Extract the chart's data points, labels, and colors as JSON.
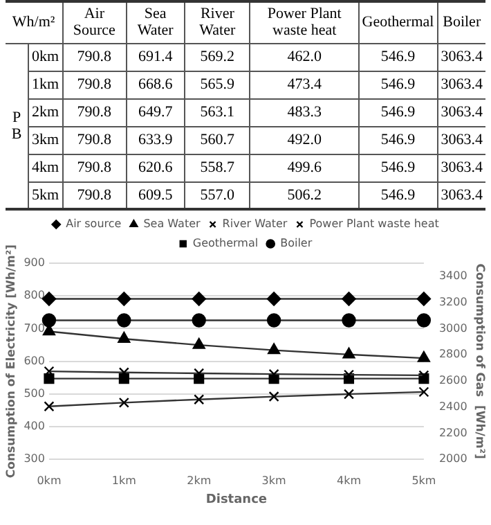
{
  "chart_data": [
    {
      "type": "heatmap",
      "categories": [
        "Air Source",
        "Sea Water",
        "River Water",
        "Power Plant waste heat",
        "Geothermal",
        "Boiler"
      ],
      "y_categories": [
        "0km",
        "1km",
        "2km",
        "3km",
        "4km",
        "5km"
      ],
      "cells": [
        [
          790.8,
          691.4,
          569.2,
          462.0,
          546.9,
          3063.4
        ],
        [
          790.8,
          668.6,
          565.9,
          473.4,
          546.9,
          3063.4
        ],
        [
          790.8,
          649.7,
          563.1,
          483.3,
          546.9,
          3063.4
        ],
        [
          790.8,
          633.9,
          560.7,
          492.0,
          546.9,
          3063.4
        ],
        [
          790.8,
          620.6,
          558.7,
          499.6,
          546.9,
          3063.4
        ],
        [
          790.8,
          609.5,
          557.0,
          506.2,
          546.9,
          3063.4
        ]
      ],
      "cell_labels": [
        [
          "790.8",
          "691.4",
          "569.2",
          "462.0",
          "546.9",
          "3063.4"
        ],
        [
          "790.8",
          "668.6",
          "565.9",
          "473.4",
          "546.9",
          "3063.4"
        ],
        [
          "790.8",
          "649.7",
          "563.1",
          "483.3",
          "546.9",
          "3063.4"
        ],
        [
          "790.8",
          "633.9",
          "560.7",
          "492.0",
          "546.9",
          "3063.4"
        ],
        [
          "790.8",
          "620.6",
          "558.7",
          "499.6",
          "546.9",
          "3063.4"
        ],
        [
          "790.8",
          "609.5",
          "557.0",
          "506.2",
          "546.9",
          "3063.4"
        ]
      ],
      "annotations": [
        "Wh/m²",
        "P B"
      ]
    },
    {
      "type": "line",
      "categories": [
        "0km",
        "1km",
        "2km",
        "3km",
        "4km",
        "5km"
      ],
      "series": [
        {
          "name": "Air source",
          "color": "#333333",
          "marker": "diamond",
          "values": [
            790.8,
            790.8,
            790.8,
            790.8,
            790.8,
            790.8
          ]
        },
        {
          "name": "Sea Water",
          "color": "#333333",
          "marker": "triangle",
          "values": [
            691.4,
            668.6,
            649.7,
            633.9,
            620.6,
            609.5
          ]
        },
        {
          "name": "River Water",
          "color": "#333333",
          "marker": "cross",
          "values": [
            569.2,
            565.9,
            563.1,
            560.7,
            558.7,
            557.0
          ]
        },
        {
          "name": "Power Plant waste heat",
          "color": "#333333",
          "marker": "cross",
          "values": [
            462.0,
            473.4,
            483.3,
            492.0,
            499.6,
            506.2
          ]
        },
        {
          "name": "Geothermal",
          "color": "#333333",
          "marker": "square",
          "values": [
            546.9,
            546.9,
            546.9,
            546.9,
            546.9,
            546.9
          ]
        },
        {
          "name": "Boiler",
          "color": "#333333",
          "marker": "circle",
          "axis": "y2",
          "values": [
            3063.4,
            3063.4,
            3063.4,
            3063.4,
            3063.4,
            3063.4
          ]
        }
      ],
      "xlabel": "Distance",
      "ylabel": "Consumption of Electricity [Wh/m²]",
      "y2label": "Consumption of Gas  [Wh/m²]",
      "ylim": [
        300,
        900
      ],
      "yticks": [
        300,
        400,
        500,
        600,
        700,
        800,
        900
      ],
      "y2lim": [
        2000,
        3500
      ],
      "y2ticks": [
        2000,
        2200,
        2400,
        2600,
        2800,
        3000,
        3200,
        3400
      ],
      "grid": "y",
      "legend": "top"
    }
  ]
}
